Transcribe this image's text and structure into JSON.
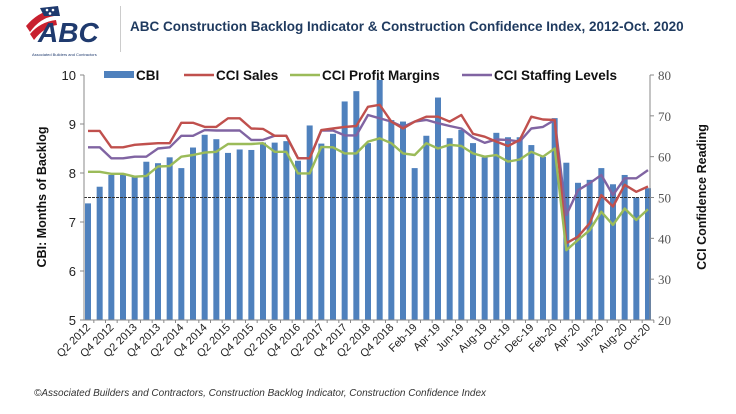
{
  "header": {
    "logo_text": "ABC",
    "logo_subtext": "Associated Builders and Contractors",
    "title": "ABC Construction Backlog Indicator & Construction Confidence Index, 2012-Oct. 2020"
  },
  "footer": "©Associated Builders and Contractors, Construction Backlog Indicator, Construction Confidence Index",
  "colors": {
    "cbi": "#4f81bd",
    "sales": "#c0504d",
    "profit": "#9bbb59",
    "staffing": "#8064a2"
  },
  "chart_data": {
    "type": "bar+line",
    "title": "ABC Construction Backlog Indicator & Construction Confidence Index, 2012-Oct. 2020",
    "ylabel": "CBI: Months of Backlog",
    "y2label": "CCI Confidence Reading",
    "ylim": [
      5,
      10
    ],
    "y2lim": [
      20,
      80
    ],
    "yticks": [
      "5",
      "6",
      "7",
      "8",
      "9",
      "10"
    ],
    "y2ticks": [
      "20",
      "30",
      "40",
      "50",
      "60",
      "70",
      "80"
    ],
    "reference_line": {
      "y2": 50,
      "style": "dashed"
    },
    "legend_position": "top",
    "x_tick_labels": [
      "Q2 2012",
      "Q4 2012",
      "Q2 2013",
      "Q4 2013",
      "Q2 2014",
      "Q4 2014",
      "Q2 2015",
      "Q4 2015",
      "Q2 2016",
      "Q4 2016",
      "Q2 2017",
      "Q4 2017",
      "Q2 2018",
      "Q4 2018",
      "Feb-19",
      "Apr-19",
      "Jun-19",
      "Aug-19",
      "Oct-19",
      "Dec-19",
      "Feb-20",
      "Apr-20",
      "Jun-20",
      "Aug-20",
      "Oct-20"
    ],
    "x_tick_every": 2,
    "series": [
      {
        "name": "CBI",
        "type": "bar",
        "axis": "left",
        "values": [
          7.38,
          7.72,
          7.96,
          7.96,
          7.93,
          8.23,
          8.2,
          8.32,
          8.1,
          8.52,
          8.78,
          8.69,
          8.41,
          8.48,
          8.47,
          8.62,
          8.62,
          8.65,
          8.25,
          8.97,
          8.6,
          8.8,
          9.46,
          9.67,
          8.61,
          9.9,
          9.08,
          9.05,
          8.1,
          8.76,
          9.54,
          8.71,
          8.88,
          8.61,
          8.32,
          8.82,
          8.73,
          8.73,
          8.57,
          8.33,
          9.12,
          8.21,
          7.8,
          7.86,
          8.1,
          7.77,
          7.96,
          7.5,
          7.69
        ]
      },
      {
        "name": "CCI Sales",
        "type": "line",
        "axis": "right",
        "values": [
          66.3,
          66.3,
          62.3,
          62.3,
          62.9,
          63.1,
          63.3,
          63.3,
          68.3,
          68.3,
          67.3,
          67.3,
          69.4,
          69.4,
          66.9,
          66.8,
          65.1,
          65.1,
          59.6,
          59.6,
          66.5,
          66.9,
          67.3,
          67.5,
          72.2,
          72.7,
          68.6,
          66.9,
          68.6,
          69.8,
          69.8,
          68.6,
          70.2,
          65.6,
          64.9,
          63.7,
          62.6,
          64.1,
          69.8,
          69.1,
          69.0,
          38.8,
          40.4,
          43.7,
          50.6,
          47.8,
          53.1,
          51.4,
          52.7
        ]
      },
      {
        "name": "CCI Profit Margins",
        "type": "line",
        "axis": "right",
        "values": [
          56.3,
          56.3,
          55.8,
          55.8,
          55.1,
          55.3,
          57.6,
          57.7,
          60.0,
          60.4,
          61.0,
          61.2,
          63.1,
          63.1,
          63.1,
          63.3,
          61.2,
          61.2,
          55.9,
          55.9,
          62.4,
          62.3,
          60.8,
          60.8,
          63.7,
          64.5,
          63.3,
          60.8,
          60.4,
          63.3,
          62.0,
          62.9,
          62.6,
          60.8,
          60.0,
          60.4,
          58.8,
          59.3,
          61.2,
          60.0,
          62.0,
          37.1,
          39.6,
          42.0,
          46.5,
          43.3,
          47.3,
          44.5,
          47.1
        ]
      },
      {
        "name": "CCI Staffing Levels",
        "type": "line",
        "axis": "right",
        "values": [
          62.3,
          62.3,
          59.6,
          59.6,
          60.0,
          60.0,
          62.0,
          62.3,
          65.1,
          65.1,
          66.5,
          66.4,
          66.4,
          66.4,
          64.1,
          64.1,
          65.1,
          65.1,
          59.6,
          59.6,
          66.4,
          66.4,
          65.2,
          65.2,
          70.2,
          69.4,
          68.6,
          67.3,
          68.6,
          69.0,
          68.2,
          67.5,
          66.9,
          64.7,
          63.4,
          64.2,
          64.1,
          63.7,
          66.9,
          67.3,
          69.0,
          45.7,
          51.8,
          53.5,
          55.5,
          50.6,
          54.7,
          54.7,
          56.7
        ]
      }
    ]
  }
}
